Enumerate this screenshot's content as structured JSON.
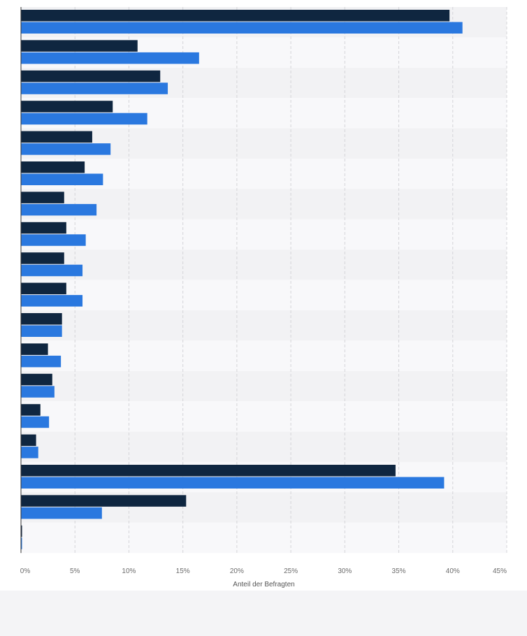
{
  "chart_data": {
    "type": "bar",
    "orientation": "horizontal",
    "xlabel": "Anteil der Befragten",
    "xlim": [
      0,
      45
    ],
    "x_ticks": [
      "0%",
      "5%",
      "10%",
      "15%",
      "20%",
      "25%",
      "30%",
      "35%",
      "40%",
      "45%"
    ],
    "grid": true,
    "category_count": 18,
    "series": [
      {
        "color": "#0f2640",
        "values": [
          39.7,
          10.8,
          12.9,
          8.5,
          6.6,
          5.9,
          4.0,
          4.2,
          4.0,
          4.2,
          3.8,
          2.5,
          2.9,
          1.8,
          1.4,
          34.7,
          15.3,
          0.1
        ]
      },
      {
        "color": "#2a78df",
        "values": [
          40.9,
          16.5,
          13.6,
          11.7,
          8.3,
          7.6,
          7.0,
          6.0,
          5.7,
          5.7,
          3.8,
          3.7,
          3.1,
          2.6,
          1.6,
          39.2,
          7.5,
          0.1
        ]
      }
    ]
  },
  "footer": {
    "background": "#f4f4f6"
  }
}
